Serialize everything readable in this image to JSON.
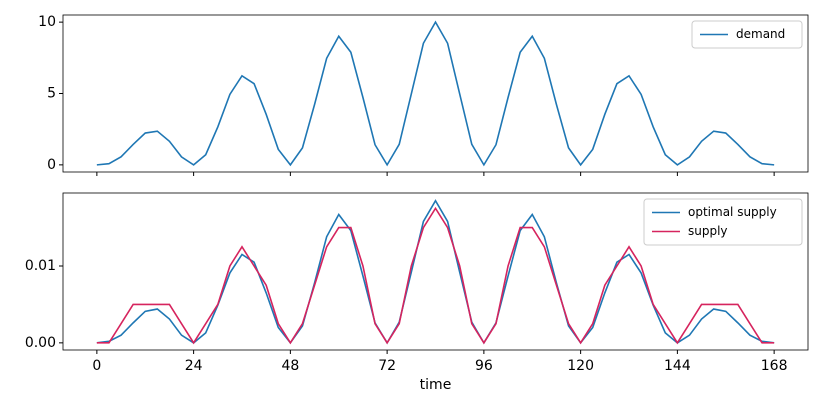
{
  "chart_data": [
    {
      "type": "line",
      "x": [
        0,
        3,
        6,
        9,
        12,
        15,
        18,
        21,
        24,
        27,
        30,
        33,
        36,
        39,
        42,
        45,
        48,
        51,
        54,
        57,
        60,
        63,
        66,
        69,
        72,
        75,
        78,
        81,
        84,
        87,
        90,
        93,
        96,
        99,
        102,
        105,
        108,
        111,
        114,
        117,
        120,
        123,
        126,
        129,
        132,
        135,
        138,
        141,
        144,
        147,
        150,
        153,
        156,
        159,
        162,
        165,
        168
      ],
      "series": [
        {
          "name": "demand",
          "color": "#1f77b4",
          "values": [
            0,
            0.08,
            0.56,
            1.43,
            2.23,
            2.36,
            1.65,
            0.56,
            0,
            0.71,
            2.66,
            4.94,
            6.24,
            5.69,
            3.54,
            1.09,
            0,
            1.19,
            4.23,
            7.47,
            9.01,
            7.89,
            4.72,
            1.41,
            0,
            1.44,
            4.97,
            8.52,
            10,
            8.52,
            4.97,
            1.44,
            0,
            1.41,
            4.72,
            7.89,
            9.01,
            7.47,
            4.23,
            1.19,
            0,
            1.09,
            3.54,
            5.69,
            6.24,
            4.94,
            2.66,
            0.71,
            0,
            0.56,
            1.65,
            2.36,
            2.23,
            1.43,
            0.56,
            0.08,
            0
          ]
        }
      ],
      "xlim": [
        -8.4,
        176.4
      ],
      "xticks": [
        0,
        24,
        48,
        72,
        96,
        120,
        144,
        168
      ],
      "ylim": [
        -0.5,
        10.5
      ],
      "yticks": [
        0,
        5,
        10
      ],
      "legend": "upper right"
    },
    {
      "type": "line",
      "x": [
        0,
        3,
        6,
        9,
        12,
        15,
        18,
        21,
        24,
        27,
        30,
        33,
        36,
        39,
        42,
        45,
        48,
        51,
        54,
        57,
        60,
        63,
        66,
        69,
        72,
        75,
        78,
        81,
        84,
        87,
        90,
        93,
        96,
        99,
        102,
        105,
        108,
        111,
        114,
        117,
        120,
        123,
        126,
        129,
        132,
        135,
        138,
        141,
        144,
        147,
        150,
        153,
        156,
        159,
        162,
        165,
        168
      ],
      "series": [
        {
          "name": "optimal supply",
          "color": "#1f77b4",
          "values": [
            0,
            0.0002,
            0.001,
            0.0026,
            0.0041,
            0.0044,
            0.0031,
            0.001,
            0,
            0.0013,
            0.0049,
            0.0091,
            0.0115,
            0.0105,
            0.0065,
            0.002,
            0,
            0.0022,
            0.0078,
            0.0138,
            0.0167,
            0.0146,
            0.0087,
            0.0026,
            0,
            0.0027,
            0.0092,
            0.0158,
            0.0185,
            0.0158,
            0.0092,
            0.0027,
            0,
            0.0026,
            0.0087,
            0.0146,
            0.0167,
            0.0138,
            0.0078,
            0.0022,
            0,
            0.002,
            0.0065,
            0.0105,
            0.0115,
            0.0091,
            0.0049,
            0.0013,
            0,
            0.001,
            0.0031,
            0.0044,
            0.0041,
            0.0026,
            0.001,
            0.0002,
            0
          ]
        },
        {
          "name": "supply",
          "color": "#d6245e",
          "values": [
            0,
            0,
            0.0025,
            0.005,
            0.005,
            0.005,
            0.005,
            0.0025,
            0,
            0.0025,
            0.005,
            0.01,
            0.0125,
            0.01,
            0.0075,
            0.0025,
            0,
            0.0025,
            0.0075,
            0.0125,
            0.015,
            0.015,
            0.01,
            0.0025,
            0,
            0.0025,
            0.01,
            0.015,
            0.0175,
            0.015,
            0.01,
            0.0025,
            0,
            0.0025,
            0.01,
            0.015,
            0.015,
            0.0125,
            0.0075,
            0.0025,
            0,
            0.0025,
            0.0075,
            0.01,
            0.0125,
            0.01,
            0.005,
            0.0025,
            0,
            0.0025,
            0.005,
            0.005,
            0.005,
            0.005,
            0.0025,
            0,
            0
          ]
        }
      ],
      "xlim": [
        -8.4,
        176.4
      ],
      "xticks": [
        0,
        24,
        48,
        72,
        96,
        120,
        144,
        168
      ],
      "xlabel": "time",
      "ylim": [
        -0.00093,
        0.0195
      ],
      "yticks": [
        {
          "value": 0,
          "label": "0.00"
        },
        0.01
      ],
      "legend": "upper right"
    }
  ]
}
